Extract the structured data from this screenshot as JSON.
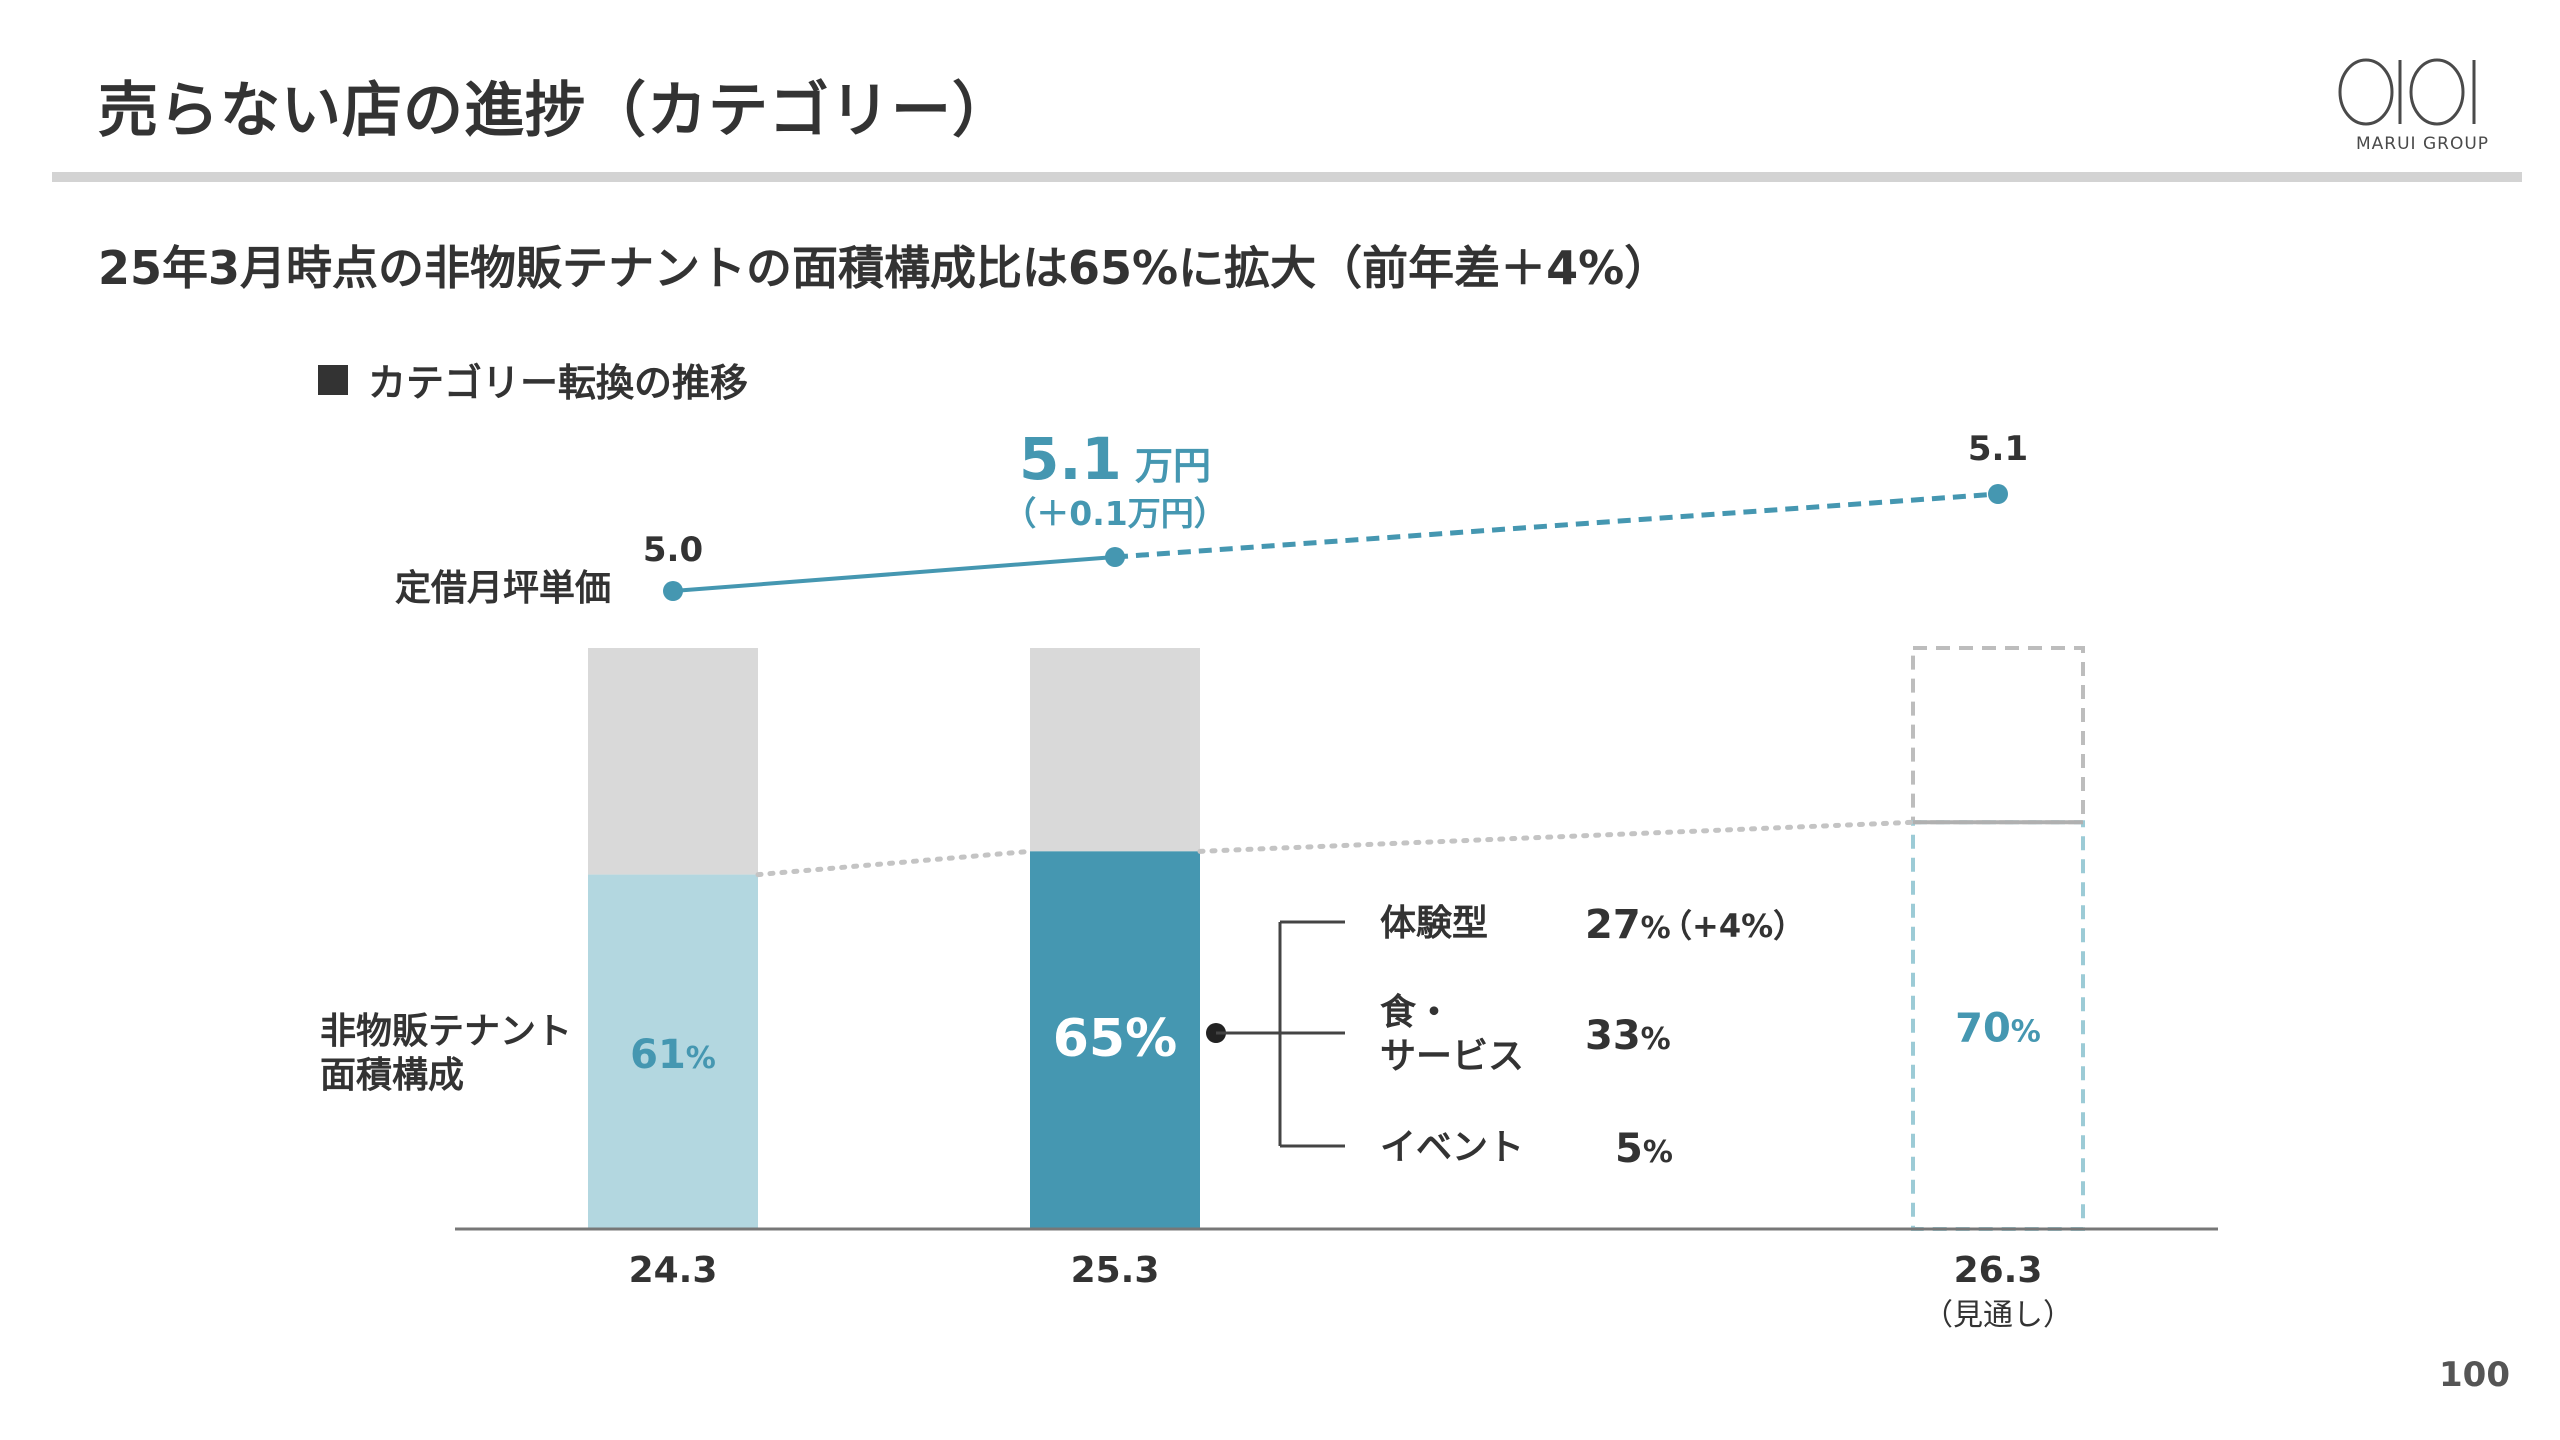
{
  "header": {
    "title": "売らない店の進捗（カテゴリー）",
    "logo_text": "MARUI GROUP",
    "page_number": "100"
  },
  "subtitle": "25年3月時点の非物販テナントの面積構成比は65%に拡大（前年差＋4%）",
  "section_title": "カテゴリー転換の推移",
  "colors": {
    "teal_dark": "#4597b1",
    "teal_light": "#b3d7e0",
    "gray_bar": "#d9d9d9",
    "text": "#333333",
    "rule": "#d3d3d3"
  },
  "chart_data": {
    "type": "bar",
    "categories": [
      "24.3",
      "25.3",
      "26.3"
    ],
    "category_note": {
      "26.3": "（見通し）"
    },
    "row_label_rent": "定借月坪単価",
    "row_label_share": [
      "非物販テナント",
      "面積構成"
    ],
    "rent_series": {
      "values": [
        5.0,
        5.1,
        5.1
      ],
      "labels": [
        "5.0",
        "5.1",
        "5.1"
      ],
      "highlight_unit": "万円",
      "highlight_change": "（＋0.1万円）",
      "line_style": [
        "solid",
        "dashed"
      ]
    },
    "share_series": {
      "values": [
        61,
        65,
        70
      ],
      "labels": [
        "61",
        "65",
        "70"
      ],
      "unit": "%",
      "styles": [
        "light",
        "dark",
        "outline"
      ]
    },
    "ylim": [
      0,
      100
    ],
    "breakdown": [
      {
        "label": "体験型",
        "value": "27",
        "unit": "%",
        "change": "（+4%）"
      },
      {
        "label": "食・\nサービス",
        "value": "33",
        "unit": "%",
        "change": ""
      },
      {
        "label": "イベント",
        "value": "5",
        "unit": "%",
        "change": ""
      }
    ]
  }
}
